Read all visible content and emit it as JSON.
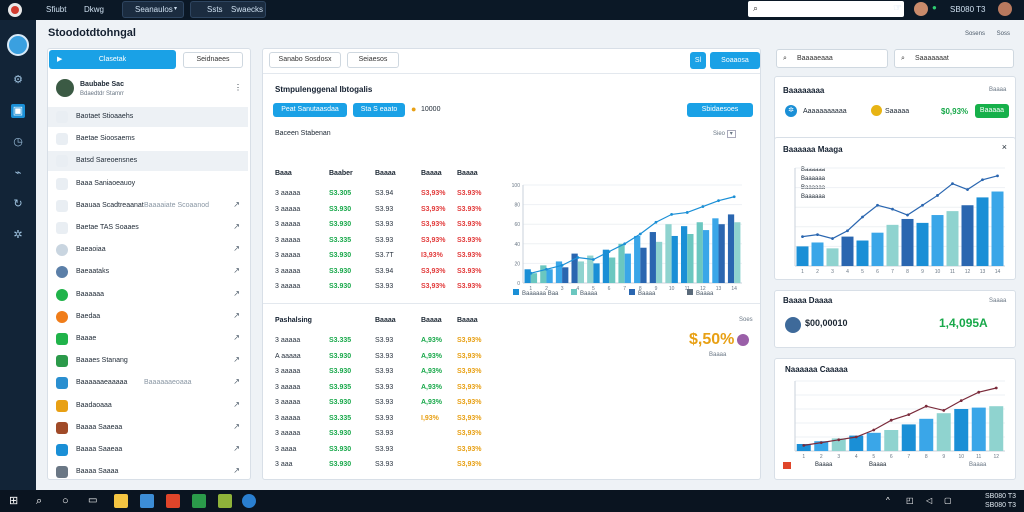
{
  "topbar": {
    "menu": [
      "Sfiubt",
      "Dkwg"
    ],
    "dropdown": "Seanaulos",
    "menu2": [
      "Ssts",
      "Swaecks"
    ],
    "clock": "SB080 T3"
  },
  "page": {
    "title": "Stoodotdtohngal",
    "header_links": [
      "Sosens",
      "Soss"
    ]
  },
  "sidebar": {
    "button_primary": "Clasetak",
    "button_secondary": "Seidnaees",
    "user": {
      "name": "Baubabe Sac",
      "sub": "Bdaedtdr Stamrr"
    },
    "items": [
      {
        "label": "Baotaet Stioaaehs",
        "sub": ""
      },
      {
        "label": "Baetae Sioosaems",
        "sub": ""
      },
      {
        "label": "Batsd Sareoensnes",
        "sub": ""
      },
      {
        "label": "Baaa Saniaoeauoy",
        "sub": ""
      },
      {
        "label": "Baauaa Scadtreaanat",
        "sub": "Baaaaiate Scoaanod"
      },
      {
        "label": "Baetae TAS Soaaes",
        "sub": ""
      },
      {
        "label": "Baeaoiaa",
        "sub": ""
      },
      {
        "label": "Baeaataks",
        "sub": ""
      },
      {
        "label": "Baaaaaa",
        "sub": ""
      },
      {
        "label": "Baedaa",
        "sub": ""
      },
      {
        "label": "Baaae",
        "sub": ""
      },
      {
        "label": "Baaaes Stanang",
        "sub": ""
      },
      {
        "label": "Baaaaaaeaaaaa",
        "sub": "Baaaaaaeoaaa"
      },
      {
        "label": "Baadaoaaa",
        "sub": ""
      },
      {
        "label": "Baaaa Saaeaa",
        "sub": ""
      },
      {
        "label": "Baaaa Saaeaa",
        "sub": ""
      },
      {
        "label": "Baaaa Saaaa",
        "sub": ""
      }
    ]
  },
  "center": {
    "toolbar": {
      "btn1": "Sanabo Sosdosx",
      "btn2": "Seiaesos",
      "btn_icon": "Sl",
      "btn_right": "Soaaosa"
    },
    "section_title": "Stmpulenggenal Ibtogalis",
    "tags": {
      "t1": "Peat Sanutaasdaa",
      "t2": "Sta S eaato",
      "value": "10000"
    },
    "action": "Sbidaesoes",
    "table1": {
      "title": "Baceen Stabenan",
      "right": "Sieo",
      "headers": [
        "Baaa",
        "Baaber",
        "Baaaa",
        "Baaaa",
        "Baaaa"
      ],
      "rows": [
        [
          "3 aaaaa",
          "S3.305",
          "S3.94",
          "S3,93%",
          "S3.93%"
        ],
        [
          "3 aaaaa",
          "S3.930",
          "S3.93",
          "S3,93%",
          "S3.93%"
        ],
        [
          "3 aaaaa",
          "S3.930",
          "S3.93",
          "S3,93%",
          "S3.93%"
        ],
        [
          "3 aaaaa",
          "S3.335",
          "S3.93",
          "S3,93%",
          "S3.93%"
        ],
        [
          "3 aaaaa",
          "S3.930",
          "S3.7T",
          "I3,93%",
          "S3.93%"
        ],
        [
          "3 aaaaa",
          "S3.930",
          "S3.94",
          "S3,93%",
          "S3.93%"
        ],
        [
          "3 aaaaa",
          "S3.930",
          "S3.93",
          "S3,93%",
          "S3.93%"
        ]
      ]
    },
    "table2": {
      "title": "Pashalsing",
      "right": "Soes",
      "headers": [
        "Baaaa",
        "Baaaa",
        "Baaaa"
      ],
      "rows": [
        [
          "3 aaaaa",
          "S3.335",
          "S3.93",
          "A,93%",
          "S3,93%"
        ],
        [
          "A aaaaa",
          "S3.930",
          "S3.93",
          "A,93%",
          "S3,93%"
        ],
        [
          "3 aaaaa",
          "S3.930",
          "S3.93",
          "A,93%",
          "S3,93%"
        ],
        [
          "3 aaaaa",
          "S3.935",
          "S3.93",
          "A,93%",
          "S3,93%"
        ],
        [
          "3 aaaaa",
          "S3.930",
          "S3.93",
          "A,93%",
          "S3,93%"
        ],
        [
          "3 aaaaa",
          "S3.335",
          "S3.93",
          "I,93%",
          "S3,93%"
        ],
        [
          "3 aaaaa",
          "S3.930",
          "S3.93",
          "",
          "S3,93%"
        ],
        [
          "3 aaaa",
          "S3.930",
          "S3.93",
          "",
          "S3,93%"
        ],
        [
          "3 aaa",
          "S3.930",
          "S3.93",
          "",
          "S3,93%"
        ]
      ]
    },
    "kpi": {
      "value": "$,50%",
      "label": "Baaaa"
    },
    "chart_legend": [
      "Baaaaaa Baa",
      "Baaaa",
      "Baaaa",
      "Baaaa"
    ]
  },
  "right": {
    "toolbar": {
      "btn1": "Baaaaeaaa",
      "btn2": "Saaaaaaat"
    },
    "card1": {
      "title": "Baaaaaaaa",
      "right": "Baaaa",
      "label": "Aaaaaaaaaaa",
      "badge": "Saaaaa",
      "value": "$0,93%",
      "button": "Baaaaa"
    },
    "card2": {
      "title": "Baaaaaa Maaga",
      "legend": [
        "Baaaaaa",
        "Baaaaaa",
        "Baaaaaa",
        "Baaaaaa"
      ]
    },
    "card3": {
      "title": "Baaaa Daaaa",
      "value": "$00,00010",
      "value2": "1,4,095A",
      "right": "Saaaa"
    },
    "card4": {
      "title": "Naaaaaa Caaaaa",
      "legend": [
        "Baaaa",
        "Baaaa"
      ],
      "right": "Baaaa"
    }
  },
  "chart_data": [
    {
      "type": "bar",
      "categories": [
        "1",
        "2",
        "3",
        "4",
        "5",
        "6",
        "7",
        "8",
        "9",
        "10",
        "11",
        "12",
        "13",
        "14"
      ],
      "series": [
        {
          "values": [
            14,
            18,
            22,
            30,
            28,
            34,
            40,
            48,
            52,
            60,
            58,
            62,
            66,
            70
          ]
        },
        {
          "values": [
            10,
            14,
            16,
            22,
            20,
            26,
            30,
            36,
            42,
            48,
            50,
            54,
            60,
            62
          ]
        }
      ],
      "line": [
        10,
        14,
        18,
        26,
        24,
        32,
        40,
        50,
        62,
        70,
        72,
        78,
        84,
        88
      ],
      "ylim": [
        0,
        100
      ],
      "yticks": [
        "0",
        "20",
        "40",
        "60",
        "80",
        "100"
      ]
    },
    {
      "type": "bar",
      "categories": [
        "1",
        "2",
        "3",
        "4",
        "5",
        "6",
        "7",
        "8",
        "9",
        "10",
        "11",
        "12",
        "13",
        "14"
      ],
      "values": [
        20,
        24,
        18,
        30,
        26,
        34,
        42,
        48,
        44,
        52,
        56,
        62,
        70,
        76
      ],
      "line": [
        30,
        32,
        28,
        36,
        50,
        62,
        58,
        52,
        62,
        72,
        84,
        78,
        88,
        92
      ],
      "ylim": [
        0,
        100
      ]
    },
    {
      "type": "bar",
      "categories": [
        "1",
        "2",
        "3",
        "4",
        "5",
        "6",
        "7",
        "8",
        "9",
        "10",
        "11",
        "12"
      ],
      "values": [
        10,
        14,
        18,
        22,
        26,
        30,
        38,
        46,
        54,
        60,
        62,
        64
      ],
      "line": [
        8,
        12,
        16,
        20,
        30,
        44,
        52,
        64,
        58,
        72,
        84,
        90
      ],
      "ylim": [
        0,
        100
      ]
    }
  ]
}
